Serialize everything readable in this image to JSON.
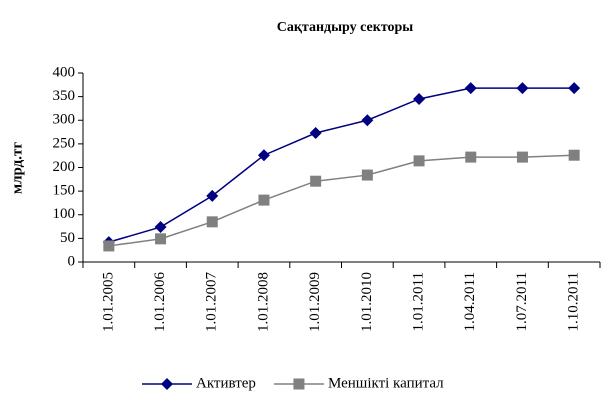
{
  "chart_data": {
    "type": "line",
    "title": "Сақтандыру секторы",
    "y_label": "млрд.тг",
    "categories": [
      "1.01.2005",
      "1.01.2006",
      "1.01.2007",
      "1.01.2008",
      "1.01.2009",
      "1.01.2010",
      "1.01.2011",
      "1.04.2011",
      "1.07.2011",
      "1.10.2011"
    ],
    "series": [
      {
        "name": "Активтер",
        "color": "#000080",
        "marker": "diamond",
        "values": [
          42,
          74,
          140,
          226,
          273,
          300,
          345,
          368,
          368,
          368
        ]
      },
      {
        "name": "Меншікті капитал",
        "color": "#808080",
        "marker": "square",
        "values": [
          34,
          49,
          85,
          131,
          171,
          184,
          214,
          222,
          222,
          226
        ]
      }
    ],
    "ylim": [
      0,
      400
    ],
    "yticks": [
      0,
      50,
      100,
      150,
      200,
      250,
      300,
      350,
      400
    ],
    "grid": false,
    "legend": "bottom"
  }
}
